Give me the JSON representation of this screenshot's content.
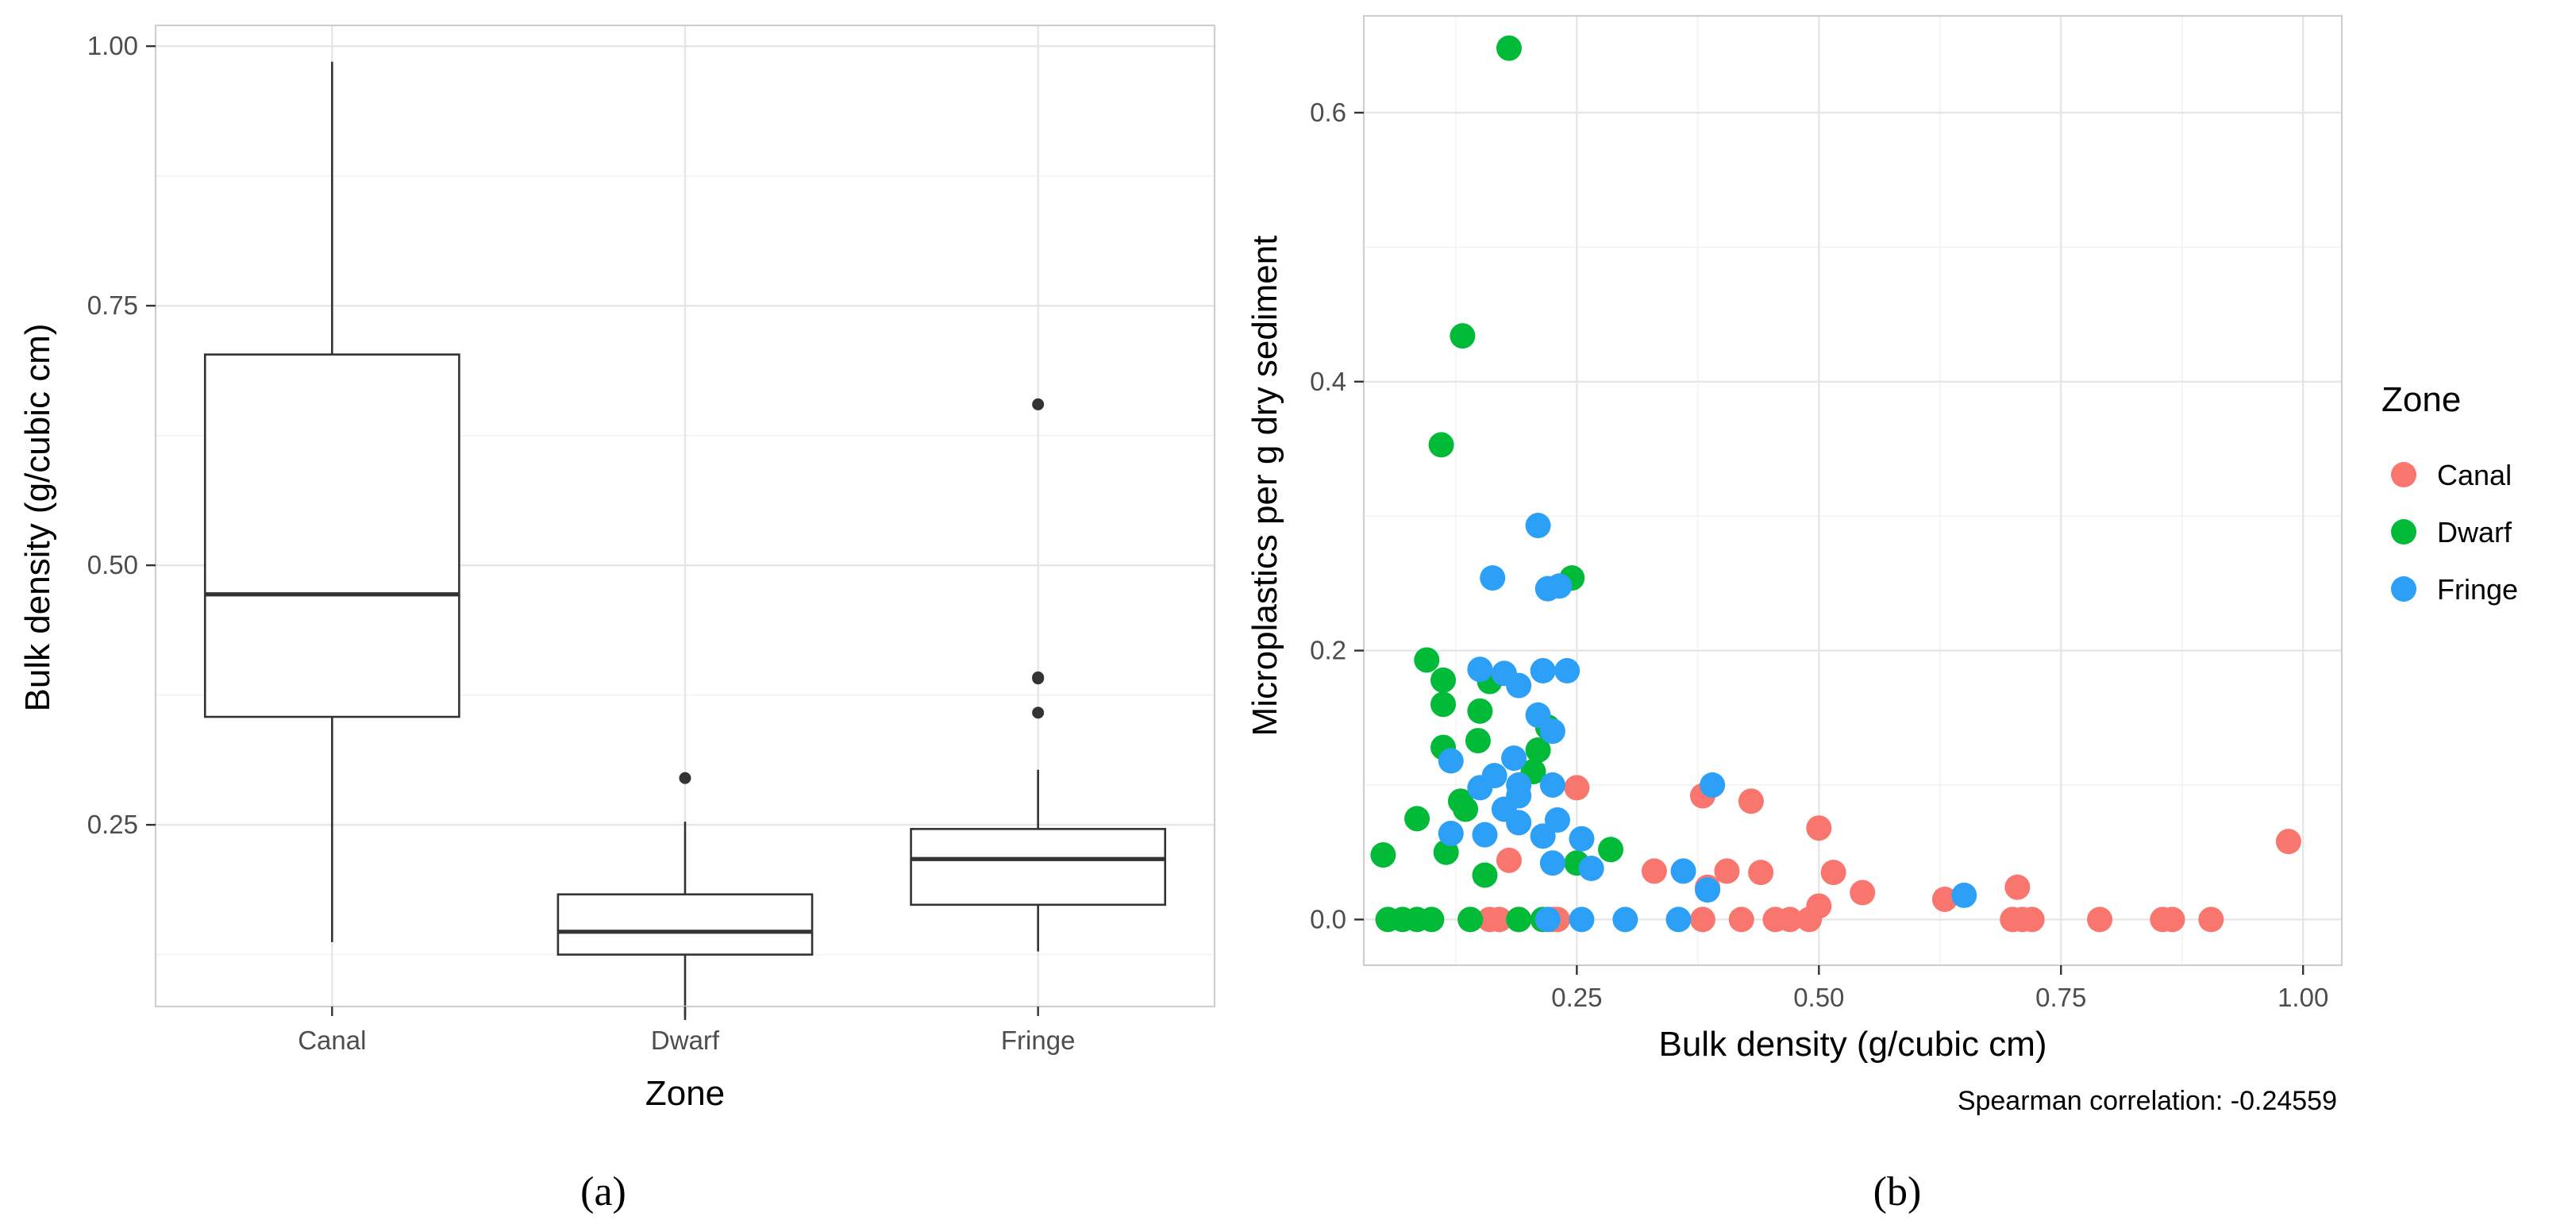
{
  "chart_data": [
    {
      "panel": "(a)",
      "type": "box",
      "xlabel": "Zone",
      "ylabel": "Bulk density (g/cubic cm)",
      "ylim": [
        0.075,
        1.02
      ],
      "y_ticks": [
        0.25,
        0.5,
        0.75,
        1.0
      ],
      "y_tick_labels": [
        "0.25",
        "0.50",
        "0.75",
        "1.00"
      ],
      "categories": [
        "Canal",
        "Dwarf",
        "Fringe"
      ],
      "boxes": [
        {
          "category": "Canal",
          "whisker_low": 0.137,
          "q1": 0.354,
          "median": 0.472,
          "q3": 0.703,
          "whisker_high": 0.985,
          "outliers": []
        },
        {
          "category": "Dwarf",
          "whisker_low": 0.062,
          "q1": 0.125,
          "median": 0.147,
          "q3": 0.183,
          "whisker_high": 0.253,
          "outliers": [
            0.295
          ]
        },
        {
          "category": "Fringe",
          "whisker_low": 0.128,
          "q1": 0.173,
          "median": 0.217,
          "q3": 0.246,
          "whisker_high": 0.303,
          "outliers": [
            0.358,
            0.391,
            0.392,
            0.655
          ]
        }
      ]
    },
    {
      "panel": "(b)",
      "type": "scatter",
      "xlabel": "Bulk density (g/cubic cm)",
      "ylabel": "Microplastics per g dry sediment",
      "xlim": [
        0.03,
        1.04
      ],
      "ylim": [
        -0.034,
        0.672
      ],
      "x_ticks": [
        0.25,
        0.5,
        0.75,
        1.0
      ],
      "x_tick_labels": [
        "0.25",
        "0.50",
        "0.75",
        "1.00"
      ],
      "y_ticks": [
        0.0,
        0.2,
        0.4,
        0.6
      ],
      "y_tick_labels": [
        "0.0",
        "0.2",
        "0.4",
        "0.6"
      ],
      "legend": {
        "title": "Zone",
        "position": "right"
      },
      "annotation": "Spearman correlation:  -0.24559",
      "series": [
        {
          "name": "Canal",
          "color": "#F8766D",
          "points": [
            [
              0.25,
              0.098
            ],
            [
              0.38,
              0.092
            ],
            [
              0.43,
              0.088
            ],
            [
              0.5,
              0.068
            ],
            [
              0.985,
              0.058
            ],
            [
              0.515,
              0.035
            ],
            [
              0.33,
              0.036
            ],
            [
              0.405,
              0.036
            ],
            [
              0.44,
              0.035
            ],
            [
              0.385,
              0.024
            ],
            [
              0.545,
              0.02
            ],
            [
              0.63,
              0.015
            ],
            [
              0.705,
              0.024
            ],
            [
              0.5,
              0.01
            ],
            [
              0.14,
              0.0
            ],
            [
              0.16,
              0.0
            ],
            [
              0.17,
              0.0
            ],
            [
              0.19,
              0.0
            ],
            [
              0.225,
              0.0
            ],
            [
              0.23,
              0.0
            ],
            [
              0.38,
              0.0
            ],
            [
              0.42,
              0.0
            ],
            [
              0.455,
              0.0
            ],
            [
              0.47,
              0.0
            ],
            [
              0.49,
              0.0
            ],
            [
              0.7,
              0.0
            ],
            [
              0.71,
              0.0
            ],
            [
              0.72,
              0.0
            ],
            [
              0.79,
              0.0
            ],
            [
              0.855,
              0.0
            ],
            [
              0.865,
              0.0
            ],
            [
              0.905,
              0.0
            ],
            [
              0.18,
              0.044
            ]
          ]
        },
        {
          "name": "Dwarf",
          "color": "#00BA38",
          "points": [
            [
              0.18,
              0.648
            ],
            [
              0.132,
              0.434
            ],
            [
              0.11,
              0.353
            ],
            [
              0.245,
              0.254
            ],
            [
              0.095,
              0.193
            ],
            [
              0.112,
              0.178
            ],
            [
              0.16,
              0.177
            ],
            [
              0.112,
              0.16
            ],
            [
              0.15,
              0.155
            ],
            [
              0.22,
              0.143
            ],
            [
              0.148,
              0.133
            ],
            [
              0.112,
              0.128
            ],
            [
              0.21,
              0.126
            ],
            [
              0.205,
              0.11
            ],
            [
              0.13,
              0.088
            ],
            [
              0.135,
              0.082
            ],
            [
              0.085,
              0.075
            ],
            [
              0.05,
              0.048
            ],
            [
              0.115,
              0.05
            ],
            [
              0.285,
              0.052
            ],
            [
              0.25,
              0.042
            ],
            [
              0.155,
              0.033
            ],
            [
              0.055,
              0.0
            ],
            [
              0.07,
              0.0
            ],
            [
              0.085,
              0.0
            ],
            [
              0.1,
              0.0
            ],
            [
              0.14,
              0.0
            ],
            [
              0.19,
              0.0
            ],
            [
              0.215,
              0.0
            ]
          ]
        },
        {
          "name": "Fringe",
          "color": "#2C9FF6",
          "points": [
            [
              0.21,
              0.293
            ],
            [
              0.163,
              0.254
            ],
            [
              0.22,
              0.246
            ],
            [
              0.232,
              0.248
            ],
            [
              0.15,
              0.186
            ],
            [
              0.175,
              0.183
            ],
            [
              0.215,
              0.185
            ],
            [
              0.24,
              0.185
            ],
            [
              0.19,
              0.174
            ],
            [
              0.21,
              0.152
            ],
            [
              0.225,
              0.14
            ],
            [
              0.12,
              0.118
            ],
            [
              0.185,
              0.12
            ],
            [
              0.165,
              0.107
            ],
            [
              0.19,
              0.1
            ],
            [
              0.225,
              0.1
            ],
            [
              0.15,
              0.098
            ],
            [
              0.39,
              0.1
            ],
            [
              0.19,
              0.092
            ],
            [
              0.175,
              0.082
            ],
            [
              0.19,
              0.072
            ],
            [
              0.23,
              0.074
            ],
            [
              0.12,
              0.064
            ],
            [
              0.155,
              0.063
            ],
            [
              0.215,
              0.062
            ],
            [
              0.255,
              0.06
            ],
            [
              0.225,
              0.042
            ],
            [
              0.265,
              0.038
            ],
            [
              0.36,
              0.036
            ],
            [
              0.385,
              0.022
            ],
            [
              0.65,
              0.018
            ],
            [
              0.255,
              0.0
            ],
            [
              0.3,
              0.0
            ],
            [
              0.355,
              0.0
            ],
            [
              0.22,
              0.0
            ]
          ]
        }
      ]
    }
  ],
  "sub_labels": {
    "a": "(a)",
    "b": "(b)"
  }
}
